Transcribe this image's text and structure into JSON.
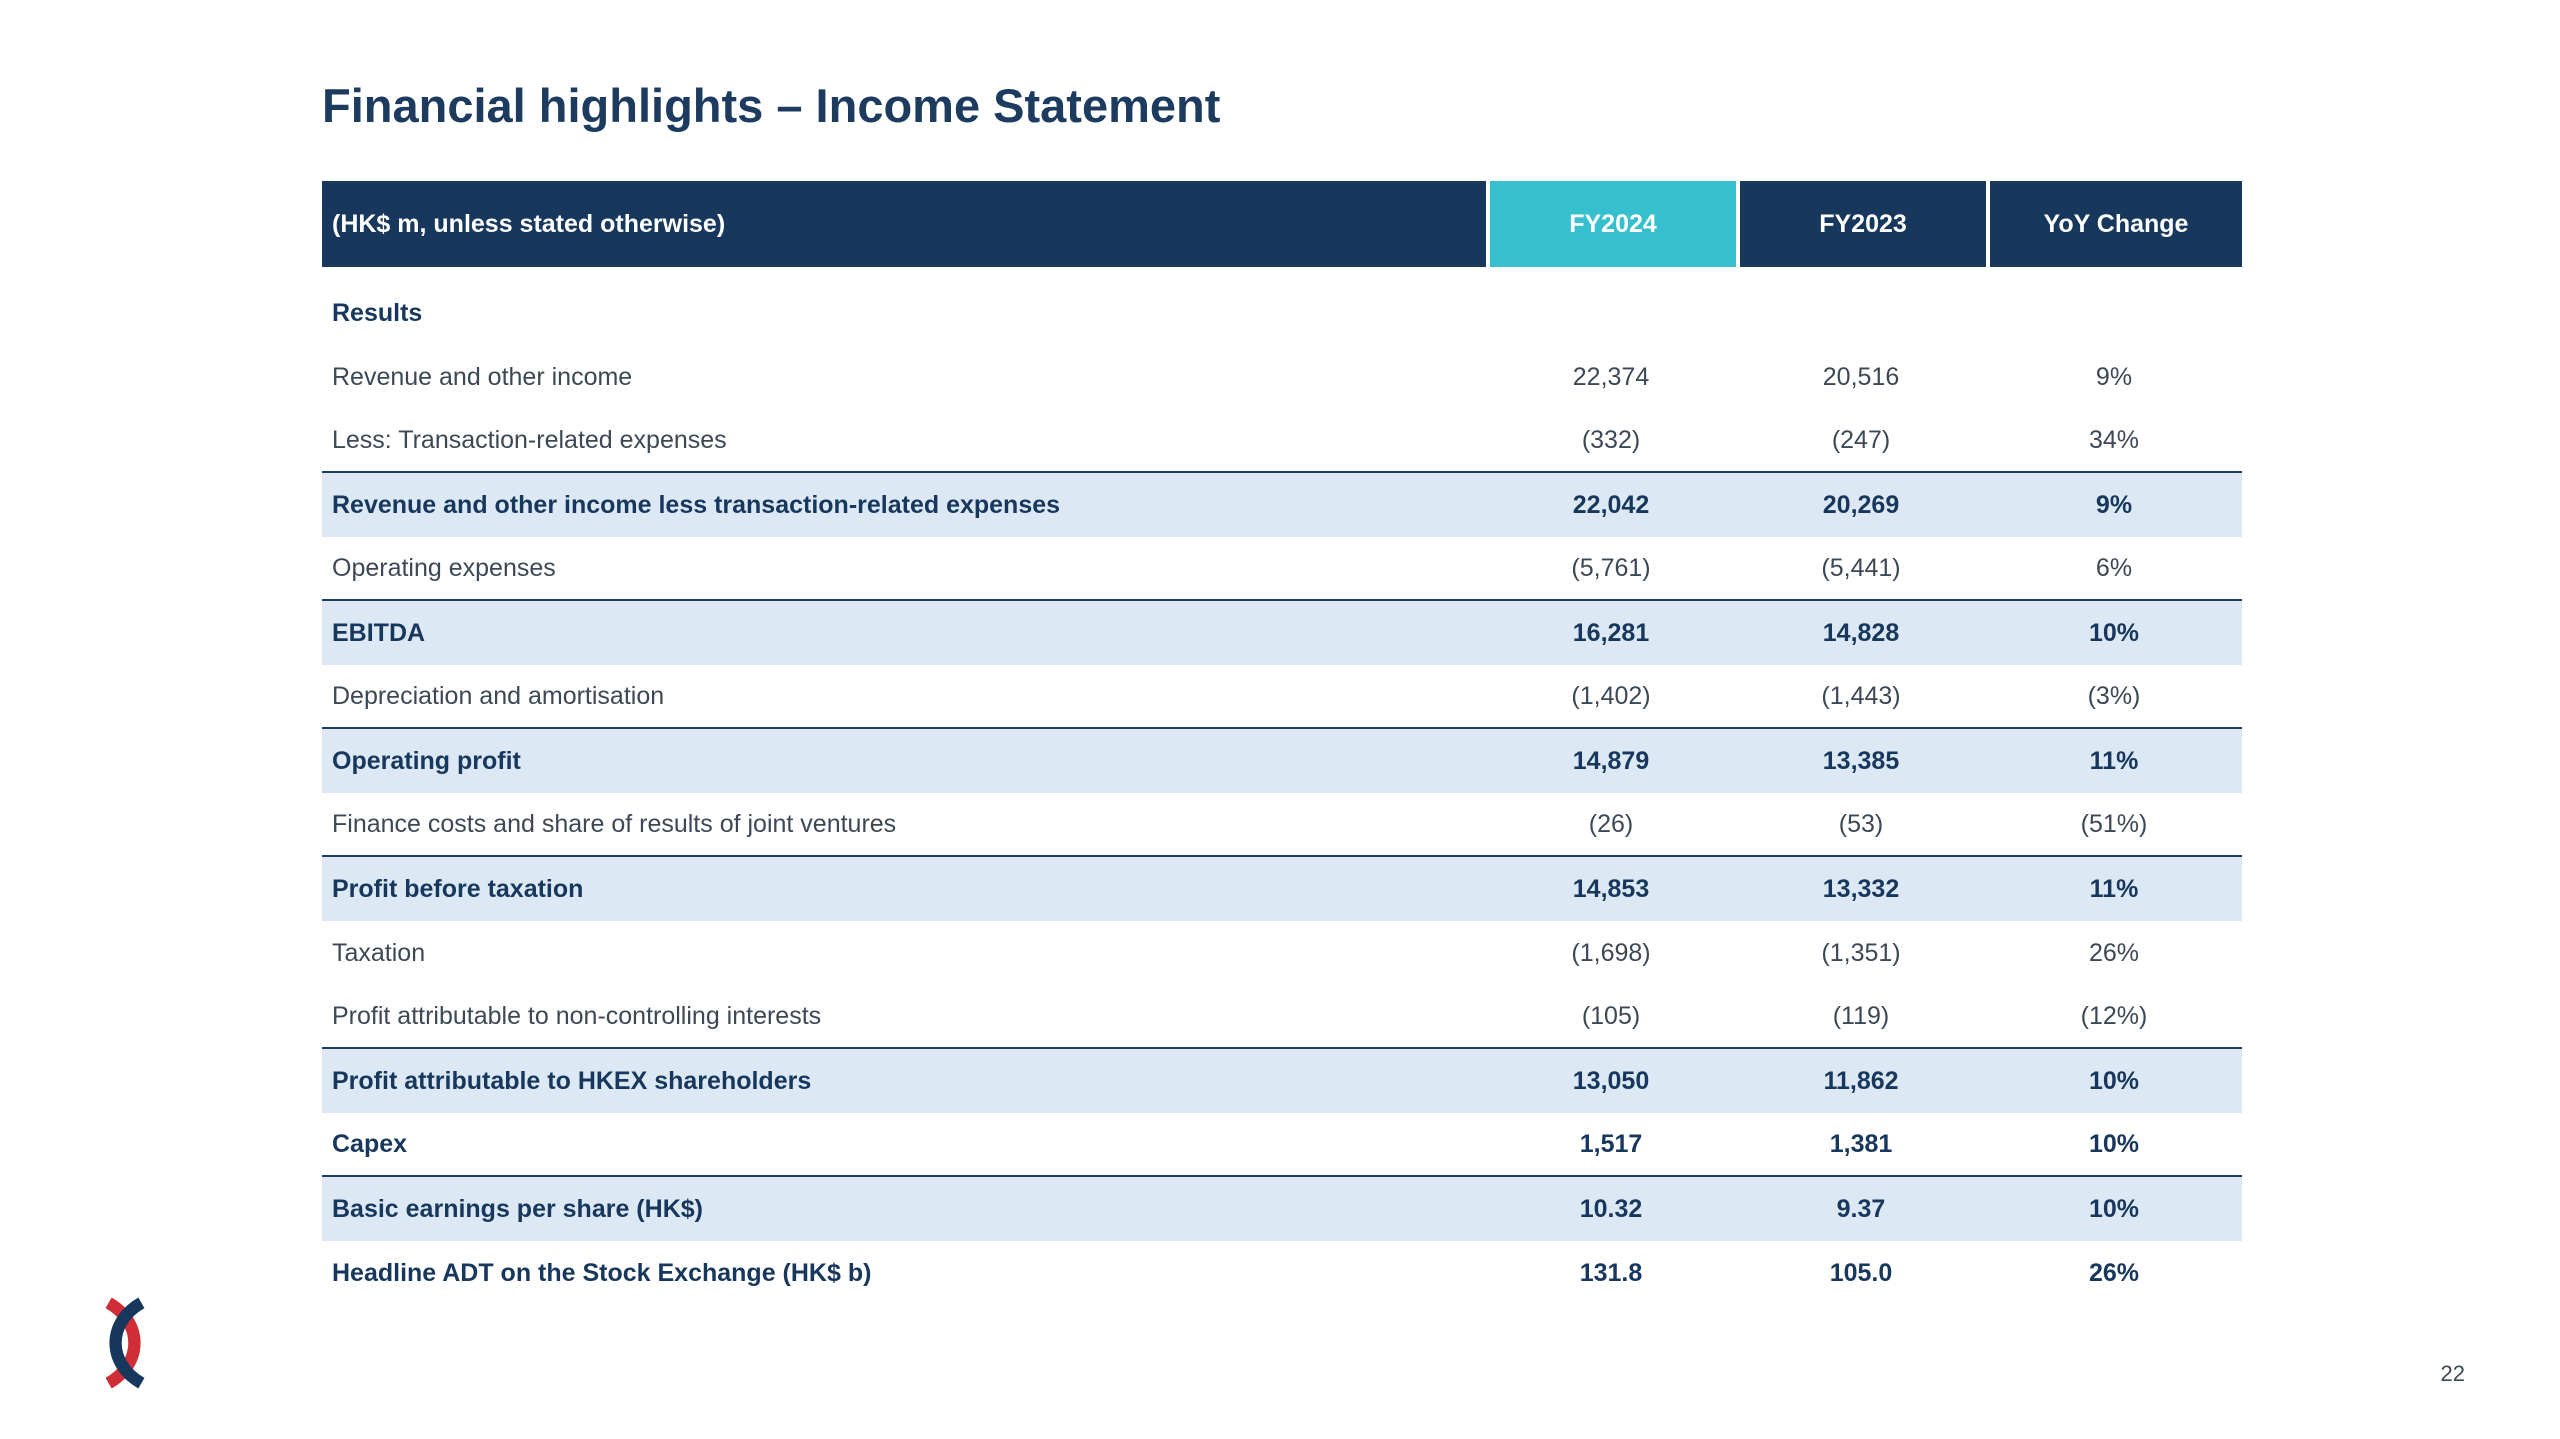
{
  "slide": {
    "title": "Financial highlights – Income Statement",
    "page_number": "22"
  },
  "colors": {
    "navy": "#17375C",
    "cyan": "#36BFCD",
    "light_blue_row": "#DCE9F5",
    "logo_red": "#CF2E36",
    "rule_line": "#1F3C63"
  },
  "table": {
    "header": {
      "label": "(HK$ m, unless stated otherwise)",
      "columns": [
        "FY2024",
        "FY2023",
        "YoY Change"
      ]
    },
    "rows": [
      {
        "label": "Results",
        "fy2024": "",
        "fy2023": "",
        "yoy": "",
        "style": "section"
      },
      {
        "label": "Revenue and other income",
        "fy2024": "22,374",
        "fy2023": "20,516",
        "yoy": "9%",
        "style": "plain"
      },
      {
        "label": "Less: Transaction-related expenses",
        "fy2024": "(332)",
        "fy2023": "(247)",
        "yoy": "34%",
        "style": "plain rule"
      },
      {
        "label": "Revenue and other income less transaction-related expenses",
        "fy2024": "22,042",
        "fy2023": "20,269",
        "yoy": "9%",
        "style": "subtotal"
      },
      {
        "label": "Operating expenses",
        "fy2024": "(5,761)",
        "fy2023": "(5,441)",
        "yoy": "6%",
        "style": "plain rule"
      },
      {
        "label": "EBITDA",
        "fy2024": "16,281",
        "fy2023": "14,828",
        "yoy": "10%",
        "style": "subtotal"
      },
      {
        "label": "Depreciation and amortisation",
        "fy2024": "(1,402)",
        "fy2023": "(1,443)",
        "yoy": "(3%)",
        "style": "plain rule"
      },
      {
        "label": "Operating profit",
        "fy2024": "14,879",
        "fy2023": "13,385",
        "yoy": "11%",
        "style": "subtotal"
      },
      {
        "label": "Finance costs and share of results of joint ventures",
        "fy2024": "(26)",
        "fy2023": "(53)",
        "yoy": "(51%)",
        "style": "plain rule"
      },
      {
        "label": "Profit before taxation",
        "fy2024": "14,853",
        "fy2023": "13,332",
        "yoy": "11%",
        "style": "subtotal"
      },
      {
        "label": "Taxation",
        "fy2024": "(1,698)",
        "fy2023": "(1,351)",
        "yoy": "26%",
        "style": "plain"
      },
      {
        "label": "Profit attributable to non-controlling interests",
        "fy2024": "(105)",
        "fy2023": "(119)",
        "yoy": "(12%)",
        "style": "plain rule"
      },
      {
        "label": "Profit attributable to HKEX shareholders",
        "fy2024": "13,050",
        "fy2023": "11,862",
        "yoy": "10%",
        "style": "subtotal"
      },
      {
        "label": "Capex",
        "fy2024": "1,517",
        "fy2023": "1,381",
        "yoy": "10%",
        "style": "bold rule"
      },
      {
        "label": "Basic earnings per share (HK$)",
        "fy2024": "10.32",
        "fy2023": "9.37",
        "yoy": "10%",
        "style": "subtotal"
      },
      {
        "label": "Headline ADT on the Stock Exchange (HK$ b)",
        "fy2024": "131.8",
        "fy2023": "105.0",
        "yoy": "26%",
        "style": "bold"
      }
    ]
  }
}
